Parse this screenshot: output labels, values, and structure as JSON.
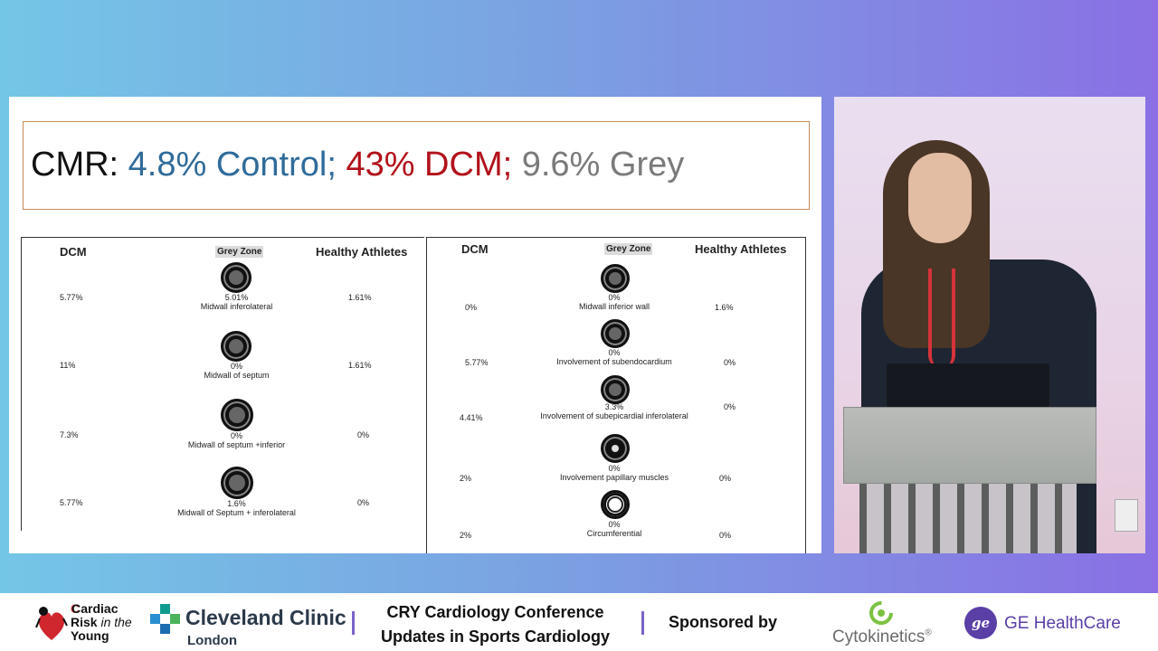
{
  "slide": {
    "title": {
      "prefix": "CMR: ",
      "control": "4.8% Control;",
      "dcm": " 43% DCM;",
      "grey": " 9.6% Grey"
    },
    "colors": {
      "control": "#2f6b9a",
      "dcm": "#b2111a",
      "grey": "#7a7a7a"
    },
    "left_table": {
      "headers": {
        "dcm": "DCM",
        "grey": "Grey Zone",
        "healthy": "Healthy Athletes"
      },
      "rows": [
        {
          "dcm": "5.77%",
          "grey": "5.01%",
          "label": "Midwall inferolateral",
          "healthy": "1.61%"
        },
        {
          "dcm": "11%",
          "grey": "0%",
          "label": "Midwall of septum",
          "healthy": "1.61%"
        },
        {
          "dcm": "7.3%",
          "grey": "0%",
          "label": "Midwall of septum +inferior",
          "healthy": "0%"
        },
        {
          "dcm": "5.77%",
          "grey": "1.6%",
          "label": "Midwall of Septum + inferolateral",
          "healthy": "0%"
        }
      ]
    },
    "right_table": {
      "headers": {
        "dcm": "DCM",
        "grey": "Grey Zone",
        "healthy": "Healthy Athletes"
      },
      "rows": [
        {
          "dcm": "0%",
          "grey": "0%",
          "label": "Midwall inferior wall",
          "healthy": "1.6%"
        },
        {
          "dcm": "5.77%",
          "grey": "0%",
          "label": "Involvement of subendocardium",
          "healthy": "0%"
        },
        {
          "dcm": "4.41%",
          "grey": "3.3%",
          "label": "Involvement of subepicardial inferolateral",
          "healthy": "0%"
        },
        {
          "dcm": "2%",
          "grey": "0%",
          "label": "Involvement papillary muscles",
          "healthy": "0%"
        },
        {
          "dcm": "2%",
          "grey": "0%",
          "label": "Circumferential",
          "healthy": "0%"
        }
      ]
    }
  },
  "footer": {
    "cry": {
      "line1": "Cardiac",
      "line2a": "Risk",
      "line2b": " in the",
      "line3": "Young"
    },
    "cleveland": {
      "name": "Cleveland Clinic",
      "sub": "London"
    },
    "conference": {
      "line1": "CRY Cardiology Conference",
      "line2": "Updates in Sports Cardiology"
    },
    "sponsored_label": "Sponsored by",
    "sponsors": {
      "cytokinetics": "Cytokinetics",
      "cyto_mark": "®",
      "ge": "GE HealthCare",
      "ge_mark": "ge"
    }
  }
}
